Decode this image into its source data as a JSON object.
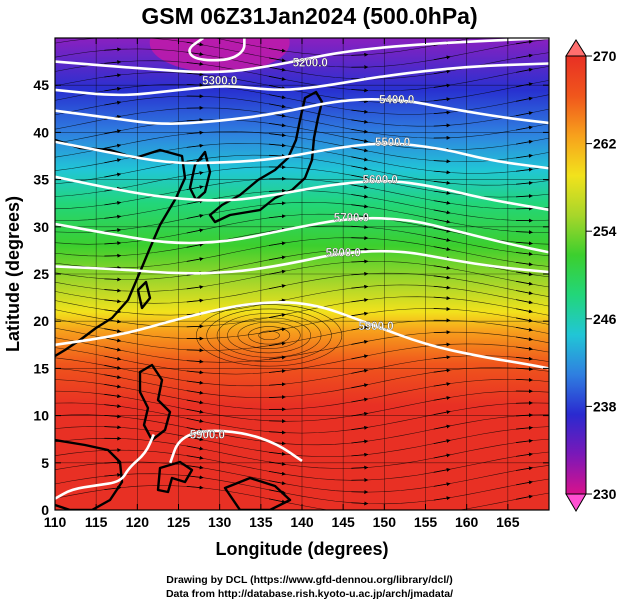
{
  "title": "GSM 06Z31Jan2024 (500.0hPa)",
  "credits": {
    "line1": "Drawing by DCL (https://www.gfd-dennou.org/library/dcl/)",
    "line2": "Data from http://database.rish.kyoto-u.ac.jp/arch/jmadata/"
  },
  "chart_data": {
    "type": "map",
    "xlabel": "Longitude (degrees)",
    "ylabel": "Latitude  (degrees)",
    "xlim": [
      110,
      170
    ],
    "ylim": [
      0,
      50
    ],
    "xticks": [
      110,
      115,
      120,
      125,
      130,
      135,
      140,
      145,
      150,
      155,
      160,
      165
    ],
    "yticks": [
      0,
      5,
      10,
      15,
      20,
      25,
      30,
      35,
      40,
      45
    ],
    "colorbar": {
      "range": [
        230,
        270
      ],
      "ticks": [
        230,
        238,
        246,
        254,
        262,
        270
      ],
      "colors": [
        "#d8128c",
        "#7a18b8",
        "#2a2ad0",
        "#2f7fe0",
        "#21c6d6",
        "#22d67a",
        "#3ccf2e",
        "#a8d62a",
        "#f2e21c",
        "#f7a11c",
        "#f0561c",
        "#e83024"
      ]
    },
    "contours": [
      {
        "label": "5200.0",
        "label_at": [
          141,
          47.4
        ],
        "points": [
          [
            110,
            47.5
          ],
          [
            120,
            46.8
          ],
          [
            130,
            46.2
          ],
          [
            138,
            47.3
          ],
          [
            145,
            48.6
          ],
          [
            155,
            49.4
          ],
          [
            170,
            50
          ]
        ]
      },
      {
        "label": "5300.0",
        "label_at": [
          130,
          45.5
        ],
        "points": [
          [
            110,
            44.5
          ],
          [
            118,
            43.8
          ],
          [
            125,
            44.5
          ],
          [
            131,
            45.0
          ],
          [
            137,
            44.4
          ],
          [
            142,
            44.8
          ],
          [
            150,
            46.0
          ],
          [
            160,
            47.0
          ],
          [
            170,
            47.3
          ]
        ]
      },
      {
        "label": "5400.0",
        "label_at": [
          151.5,
          43.5
        ],
        "points": [
          [
            110,
            42.3
          ],
          [
            117,
            41.5
          ],
          [
            123,
            40.8
          ],
          [
            130,
            41.2
          ],
          [
            137,
            42.0
          ],
          [
            145,
            43.5
          ],
          [
            152,
            43.5
          ],
          [
            158,
            42.5
          ],
          [
            165,
            41.5
          ],
          [
            170,
            41.0
          ]
        ]
      },
      {
        "label": "5500.0",
        "label_at": [
          151,
          39.0
        ],
        "points": [
          [
            110,
            39.0
          ],
          [
            117,
            37.8
          ],
          [
            124,
            36.7
          ],
          [
            131,
            36.8
          ],
          [
            137,
            37.2
          ],
          [
            143,
            38.2
          ],
          [
            150,
            39.0
          ],
          [
            157,
            38.3
          ],
          [
            163,
            37.0
          ],
          [
            170,
            36.2
          ]
        ]
      },
      {
        "label": "5600.0",
        "label_at": [
          149.5,
          35.0
        ],
        "points": [
          [
            110,
            35.3
          ],
          [
            117,
            34.0
          ],
          [
            124,
            33.0
          ],
          [
            131,
            32.7
          ],
          [
            137,
            33.4
          ],
          [
            143,
            34.4
          ],
          [
            150,
            35.0
          ],
          [
            156,
            34.3
          ],
          [
            162,
            33.0
          ],
          [
            170,
            31.8
          ]
        ]
      },
      {
        "label": "5700.0",
        "label_at": [
          146,
          31.0
        ],
        "points": [
          [
            110,
            30.3
          ],
          [
            117,
            29.2
          ],
          [
            124,
            28.2
          ],
          [
            131,
            28.4
          ],
          [
            138,
            29.7
          ],
          [
            146,
            31.0
          ],
          [
            153,
            30.8
          ],
          [
            159,
            29.5
          ],
          [
            165,
            28.2
          ],
          [
            170,
            27.3
          ]
        ]
      },
      {
        "label": "5800.0",
        "label_at": [
          145,
          27.3
        ],
        "points": [
          [
            110,
            25.8
          ],
          [
            118,
            25.5
          ],
          [
            125,
            25.0
          ],
          [
            132,
            25.2
          ],
          [
            138,
            26.0
          ],
          [
            145,
            27.3
          ],
          [
            152,
            27.5
          ],
          [
            158,
            26.5
          ],
          [
            164,
            25.7
          ],
          [
            170,
            25.2
          ]
        ]
      },
      {
        "label": "5900.0",
        "label_at": [
          149,
          19.5
        ],
        "points": [
          [
            110,
            17.5
          ],
          [
            118,
            18.5
          ],
          [
            126,
            20.5
          ],
          [
            134,
            22.0
          ],
          [
            141,
            22.0
          ],
          [
            148,
            19.8
          ],
          [
            155,
            17.5
          ],
          [
            162,
            16.2
          ],
          [
            167,
            15.5
          ],
          [
            170,
            15.0
          ]
        ]
      },
      {
        "label": "5900.0",
        "label_at": [
          128.5,
          8.0
        ],
        "points": [
          [
            124,
            5.0
          ],
          [
            125,
            7.5
          ],
          [
            128,
            8.5
          ],
          [
            133,
            8.2
          ],
          [
            137,
            7.0
          ],
          [
            140,
            5.2
          ]
        ]
      },
      {
        "label": "",
        "label_at": null,
        "points": [
          [
            128,
            50
          ],
          [
            126,
            48.8
          ],
          [
            127,
            47.7
          ],
          [
            131,
            47.6
          ],
          [
            133,
            48.6
          ],
          [
            133,
            50
          ]
        ]
      },
      {
        "label": "",
        "label_at": null,
        "points": [
          [
            110,
            1.2
          ],
          [
            112,
            2.2
          ],
          [
            115,
            2.6
          ],
          [
            118,
            3.0
          ],
          [
            119,
            4.5
          ],
          [
            121,
            6.0
          ],
          [
            122,
            8.0
          ]
        ]
      }
    ]
  }
}
